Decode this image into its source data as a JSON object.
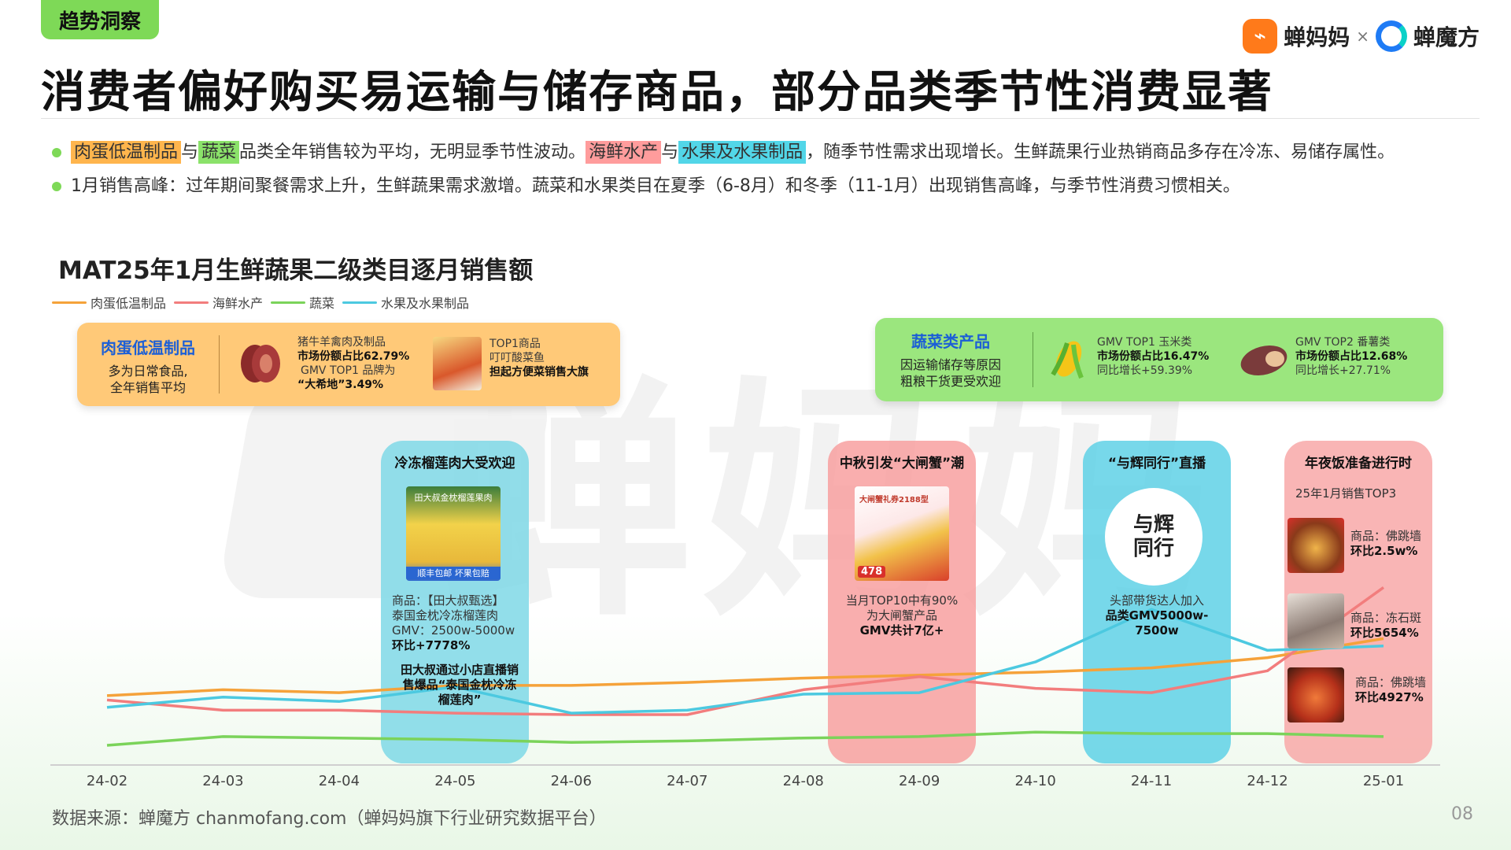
{
  "header": {
    "tag": "趋势洞察",
    "title": "消费者偏好购买易运输与储存商品，部分品类季节性消费显著",
    "logo_left": "蝉妈妈",
    "logo_sep": "×",
    "logo_right": "蝉魔方",
    "logo_left_icon": "chanmama-logo-icon",
    "logo_right_icon": "chanmofang-logo-icon"
  },
  "bullets": {
    "b1_hl1": "肉蛋低温制品",
    "b1_t1": "与",
    "b1_hl2": "蔬菜",
    "b1_t2": "品类全年销售较为平均，无明显季节性波动。",
    "b1_hl3": "海鲜水产",
    "b1_t3": "与",
    "b1_hl4": "水果及水果制品",
    "b1_t4": "，随季节性需求出现增长。生鲜蔬果行业热销商品多存在冷冻、易储存属性。",
    "b2": "1月销售高峰：过年期间聚餐需求上升，生鲜蔬果需求激增。蔬菜和水果类目在夏季（6-8月）和冬季（11-1月）出现销售高峰，与季节性消费习惯相关。"
  },
  "chart_data": {
    "type": "line",
    "title": "MAT25年1月生鲜蔬果二级类目逐月销售额",
    "x": [
      "24-02",
      "24-03",
      "24-04",
      "24-05",
      "24-06",
      "24-07",
      "24-08",
      "24-09",
      "24-10",
      "24-11",
      "24-12",
      "25-01"
    ],
    "series": [
      {
        "name": "肉蛋低温制品",
        "color": "#f5a23a",
        "values": [
          41,
          45,
          43,
          48,
          48,
          50,
          53,
          55,
          57,
          60,
          67,
          80
        ]
      },
      {
        "name": "海鲜水产",
        "color": "#f27d7d",
        "values": [
          38,
          31,
          31,
          29,
          28,
          28,
          45,
          54,
          46,
          43,
          58,
          115
        ]
      },
      {
        "name": "蔬菜",
        "color": "#7bd35a",
        "values": [
          7,
          13,
          12,
          11,
          9,
          10,
          12,
          13,
          16,
          15,
          15,
          13
        ]
      },
      {
        "name": "水果及水果制品",
        "color": "#4cc9e0",
        "values": [
          33,
          40,
          37,
          47,
          29,
          31,
          42,
          43,
          64,
          100,
          72,
          75
        ]
      }
    ],
    "ylim": [
      0,
      140
    ],
    "grid": false,
    "legend": "top-left"
  },
  "panels": {
    "meat": {
      "head": "肉蛋低温制品",
      "sub1": "多为日常食品,",
      "sub2": "全年销售平均",
      "m1": "猪牛羊禽肉及制品",
      "m2": "市场份额占比62.79%",
      "m3": "GMV TOP1 品牌为",
      "m4": "“大希地”3.49%",
      "p1": "TOP1商品",
      "p2": "叮叮酸菜鱼",
      "p3": "担起方便菜销售大旗"
    },
    "veg": {
      "head": "蔬菜类产品",
      "sub1": "因运输储存等原因",
      "sub2": "粗粮干货更受欢迎",
      "a1": "GMV TOP1 玉米类",
      "a2": "市场份额占比16.47%",
      "a3": "同比增长+59.39%",
      "b1": "GMV TOP2 番薯类",
      "b2": "市场份额占比12.68%",
      "b3": "同比增长+27.71%"
    }
  },
  "columns": {
    "durian": {
      "title": "冷冻榴莲肉大受欢迎",
      "img_caption": "田大叔金枕榴莲果肉",
      "img_bottom": "顺丰包邮 坏果包赔",
      "t1": "商品：【田大叔甄选】",
      "t2": "泰国金枕冷冻榴莲肉",
      "t3": "GMV：2500w-5000w",
      "t4": "环比+7778%",
      "t5": "田大叔通过小店直播销",
      "t6": "售爆品“泰国金枕冷冻",
      "t7": "榴莲肉”"
    },
    "crab": {
      "title": "中秋引发“大闸蟹”潮",
      "img_price": "478",
      "img_brand": "大闸蟹礼券2188型",
      "t1": "当月TOP10中有90%",
      "t2": "为大闸蟹产品",
      "t3": "GMV共计7亿+"
    },
    "live": {
      "title": "“与辉同行”直播",
      "logo_text": "与辉同行",
      "t1": "头部带货达人加入",
      "t2": "品类GMV5000w-",
      "t3": "7500w"
    },
    "newyear": {
      "title": "年夜饭准备进行时",
      "sub": "25年1月销售TOP3",
      "i1a": "商品：佛跳墙",
      "i1b": "环比2.5w%",
      "i2a": "商品：冻石斑",
      "i2b": "环比5654%",
      "i3a": "商品：佛跳墙",
      "i3b": "环比4927%"
    }
  },
  "watermark": "蝉妈妈",
  "footer": {
    "source": "数据来源：蝉魔方 chanmofang.com（蝉妈妈旗下行业研究数据平台）",
    "page": "08"
  }
}
